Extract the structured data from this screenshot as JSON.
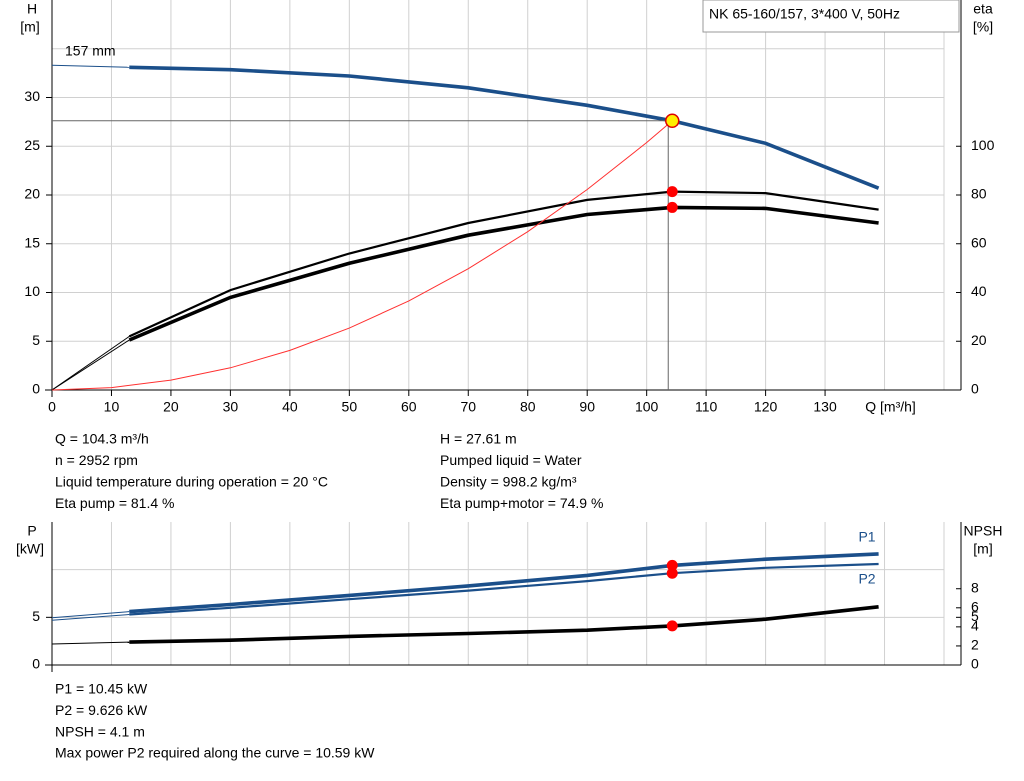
{
  "chart_data": [
    {
      "type": "line",
      "title": "NK 65-160/157, 3*400 V, 50Hz",
      "y_label": "H",
      "y_unit": "[m]",
      "y2_label": "eta",
      "y2_unit": "[%]",
      "x_label": "Q [m³/h]",
      "annotation": "157 mm",
      "xlim": [
        0,
        150
      ],
      "xticks": [
        0,
        10,
        20,
        30,
        40,
        50,
        60,
        70,
        80,
        90,
        100,
        110,
        120,
        130
      ],
      "xgrid": [
        0,
        10,
        20,
        30,
        40,
        50,
        60,
        70,
        80,
        90,
        100,
        110,
        120,
        130,
        140,
        150
      ],
      "ylim": [
        0,
        40
      ],
      "yticks": [
        0,
        5,
        10,
        15,
        20,
        25,
        30
      ],
      "ygrid": [
        0,
        5,
        10,
        15,
        20,
        25,
        30,
        35
      ],
      "y2lim": [
        0,
        160
      ],
      "y2ticks": [
        0,
        20,
        40,
        60,
        80,
        100
      ],
      "grid": true,
      "series": [
        {
          "color": "#1b4f8a",
          "style": "thin",
          "x": [
            0,
            13
          ],
          "values": [
            33.3,
            33.1
          ]
        },
        {
          "color": "#1b4f8a",
          "style": "thick",
          "x": [
            13,
            30,
            50,
            70,
            90,
            104.3,
            120,
            139
          ],
          "values": [
            33.1,
            32.85,
            32.2,
            31,
            29.2,
            27.61,
            25.3,
            20.7
          ]
        },
        {
          "color": "#000000",
          "style": "thin",
          "axis": "y2",
          "x": [
            0,
            13
          ],
          "values": [
            0,
            22
          ]
        },
        {
          "color": "#000000",
          "style": "normal",
          "axis": "y2",
          "x": [
            13,
            30,
            50,
            70,
            90,
            104.3,
            120,
            139
          ],
          "values": [
            22,
            41,
            56,
            68.5,
            78,
            81.4,
            80.8,
            74
          ]
        },
        {
          "color": "#000000",
          "style": "thin",
          "axis": "y2",
          "x": [
            0,
            13
          ],
          "values": [
            0,
            20.5
          ]
        },
        {
          "color": "#000000",
          "style": "thick",
          "axis": "y2",
          "x": [
            13,
            30,
            50,
            70,
            90,
            104.3,
            120,
            139
          ],
          "values": [
            20.5,
            38,
            52,
            63.5,
            72,
            74.9,
            74.5,
            68.5
          ]
        },
        {
          "color": "#ff3030",
          "style": "thin",
          "x": [
            0,
            10,
            20,
            30,
            40,
            50,
            60,
            70,
            80,
            90,
            100,
            104.3
          ],
          "values": [
            0,
            0.25,
            1.02,
            2.28,
            4.06,
            6.35,
            9.14,
            12.44,
            16.24,
            20.56,
            25.38,
            27.61
          ]
        }
      ],
      "points": [
        {
          "x": 104.3,
          "value": 27.61,
          "color": "#ffee00",
          "guides": true
        },
        {
          "x": 104.3,
          "value": 81.4,
          "color": "#ff0000",
          "axis": "y2"
        },
        {
          "x": 104.3,
          "value": 74.9,
          "color": "#ff0000",
          "axis": "y2"
        }
      ]
    },
    {
      "type": "line",
      "y_label": "P",
      "y_unit": "[kW]",
      "y2_label": "NPSH",
      "y2_unit": "[m]",
      "xlim": [
        0,
        150
      ],
      "xgrid": [
        0,
        10,
        20,
        30,
        40,
        50,
        60,
        70,
        80,
        90,
        100,
        110,
        120,
        130,
        140,
        150
      ],
      "ylim": [
        0,
        15
      ],
      "yticks": [
        0,
        5
      ],
      "ygrid": [
        0,
        5,
        10
      ],
      "y2lim": [
        0,
        15
      ],
      "y2ticks": [
        0,
        2,
        4,
        5,
        6,
        8
      ],
      "grid": true,
      "series": [
        {
          "color": "#1b4f8a",
          "style": "thin",
          "x": [
            0,
            13
          ],
          "values": [
            4.95,
            5.6
          ]
        },
        {
          "name": "P1",
          "label_side": "above",
          "color": "#1b4f8a",
          "style": "thick",
          "x": [
            13,
            30,
            50,
            70,
            90,
            104.3,
            120,
            139
          ],
          "values": [
            5.6,
            6.35,
            7.3,
            8.3,
            9.4,
            10.45,
            11.1,
            11.65
          ]
        },
        {
          "color": "#1b4f8a",
          "style": "thin",
          "x": [
            0,
            13
          ],
          "values": [
            4.7,
            5.3
          ]
        },
        {
          "name": "P2",
          "label_side": "below",
          "color": "#1b4f8a",
          "style": "normal",
          "x": [
            13,
            30,
            50,
            70,
            90,
            104.3,
            120,
            139
          ],
          "values": [
            5.3,
            6.0,
            6.9,
            7.8,
            8.8,
            9.626,
            10.2,
            10.59
          ]
        },
        {
          "color": "#000000",
          "style": "thin",
          "axis": "y2",
          "x": [
            0,
            13
          ],
          "values": [
            2.2,
            2.4
          ]
        },
        {
          "color": "#000000",
          "style": "thick",
          "axis": "y2",
          "x": [
            13,
            30,
            50,
            70,
            90,
            104.3,
            120,
            139
          ],
          "values": [
            2.4,
            2.6,
            3.0,
            3.3,
            3.65,
            4.1,
            4.8,
            6.1
          ]
        }
      ],
      "points": [
        {
          "x": 104.3,
          "value": 10.45,
          "color": "#ff0000"
        },
        {
          "x": 104.3,
          "value": 9.626,
          "color": "#ff0000"
        },
        {
          "x": 104.3,
          "value": 4.1,
          "color": "#ff0000",
          "axis": "y2"
        }
      ]
    }
  ],
  "info_top": {
    "left": [
      "Q = 104.3 m³/h",
      "n = 2952 rpm",
      "Liquid temperature during operation = 20 °C",
      "Eta pump = 81.4 %"
    ],
    "right": [
      "H = 27.61 m",
      "Pumped liquid = Water",
      "Density = 998.2 kg/m³",
      "Eta pump+motor = 74.9 %"
    ]
  },
  "info_bottom": [
    "P1 = 10.45 kW",
    "P2 = 9.626 kW",
    "NPSH = 4.1 m",
    "Max power P2 required along the curve = 10.59 kW"
  ]
}
